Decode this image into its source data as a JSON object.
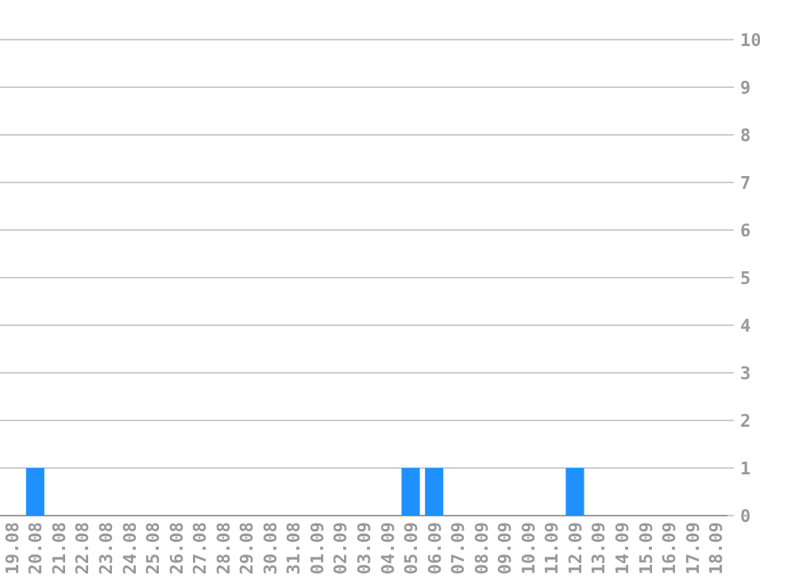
{
  "chart_data": {
    "type": "bar",
    "categories": [
      "19.08",
      "20.08",
      "21.08",
      "22.08",
      "23.08",
      "24.08",
      "25.08",
      "26.08",
      "27.08",
      "28.08",
      "29.08",
      "30.08",
      "31.08",
      "01.09",
      "02.09",
      "03.09",
      "04.09",
      "05.09",
      "06.09",
      "07.09",
      "08.09",
      "09.09",
      "10.09",
      "11.09",
      "12.09",
      "13.09",
      "14.09",
      "15.09",
      "16.09",
      "17.09",
      "18.09"
    ],
    "values": [
      0,
      1,
      0,
      0,
      0,
      0,
      0,
      0,
      0,
      0,
      0,
      0,
      0,
      0,
      0,
      0,
      0,
      1,
      1,
      0,
      0,
      0,
      0,
      0,
      1,
      0,
      0,
      0,
      0,
      0,
      0
    ],
    "color": "#1e90ff",
    "ylim": [
      0,
      10
    ],
    "yticks": [
      0,
      1,
      2,
      3,
      4,
      5,
      6,
      7,
      8,
      9,
      10
    ],
    "grid": "y"
  }
}
